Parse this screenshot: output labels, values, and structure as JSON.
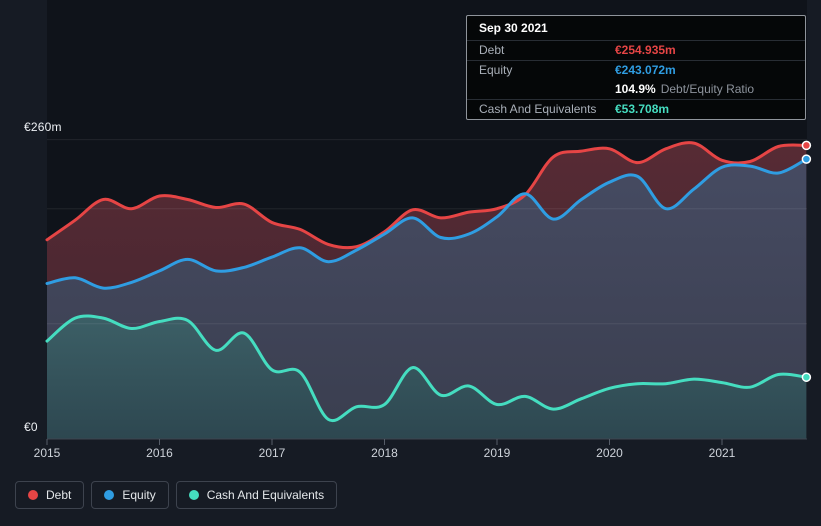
{
  "tooltip": {
    "date": "Sep 30 2021",
    "debt_label": "Debt",
    "debt_value": "€254.935m",
    "equity_label": "Equity",
    "equity_value": "€243.072m",
    "ratio_value": "104.9%",
    "ratio_label": "Debt/Equity Ratio",
    "cash_label": "Cash And Equivalents",
    "cash_value": "€53.708m"
  },
  "legend": {
    "items": [
      {
        "label": "Debt",
        "color": "#e64545"
      },
      {
        "label": "Equity",
        "color": "#2f9de2"
      },
      {
        "label": "Cash And Equivalents",
        "color": "#45ddc0"
      }
    ]
  },
  "axis": {
    "y_top_label": "€260m",
    "y_bottom_label": "€0"
  },
  "colors": {
    "background": "#161b24",
    "plot_background": "#0f131a",
    "axis_line": "#3f4550",
    "tick": "#565d68",
    "year_label": "#ced3da",
    "gridline": "#ffffff"
  },
  "chart_data": {
    "type": "area",
    "title": "Debt to Equity History",
    "unit": "€m",
    "ylim": [
      0,
      260
    ],
    "y_gridlines": [
      260,
      200,
      100
    ],
    "x_ticks": [
      "2015",
      "2016",
      "2017",
      "2018",
      "2019",
      "2020",
      "2021"
    ],
    "x": [
      "2014-12",
      "2015-03",
      "2015-06",
      "2015-09",
      "2015-12",
      "2016-03",
      "2016-06",
      "2016-09",
      "2016-12",
      "2017-03",
      "2017-06",
      "2017-09",
      "2017-12",
      "2018-03",
      "2018-06",
      "2018-09",
      "2018-12",
      "2019-03",
      "2019-06",
      "2019-09",
      "2019-12",
      "2020-03",
      "2020-06",
      "2020-09",
      "2020-12",
      "2021-03",
      "2021-06",
      "2021-09"
    ],
    "series": [
      {
        "name": "Debt",
        "color": "#e64545",
        "fill_top": "#572b34",
        "fill_bottom": "#412430",
        "values": [
          173,
          190,
          208,
          200,
          211,
          208,
          201,
          204,
          188,
          182,
          169,
          167,
          180,
          199,
          192,
          197,
          200,
          212,
          245,
          250,
          252,
          240,
          252,
          257,
          242,
          241,
          254,
          254.935
        ]
      },
      {
        "name": "Equity",
        "color": "#2f9de2",
        "fill_top": "#464b62",
        "fill_bottom": "#3a3e4f",
        "values": [
          135,
          140,
          131,
          136,
          146,
          156,
          146,
          149,
          158,
          166,
          154,
          164,
          178,
          192,
          175,
          178,
          193,
          213,
          191,
          208,
          223,
          228,
          200,
          217,
          236,
          237,
          231,
          243.072
        ]
      },
      {
        "name": "Cash And Equivalents",
        "color": "#45ddc0",
        "fill_top": "#3c5f66",
        "fill_bottom": "#2d4750",
        "values": [
          85,
          105,
          105,
          96,
          102,
          103,
          77,
          92,
          60,
          58,
          17,
          28,
          30,
          62,
          38,
          46,
          30,
          37,
          26,
          35,
          44,
          48,
          48,
          52,
          49,
          45,
          56,
          53.708
        ]
      }
    ],
    "legend_position": "bottom-left",
    "grid": true
  }
}
